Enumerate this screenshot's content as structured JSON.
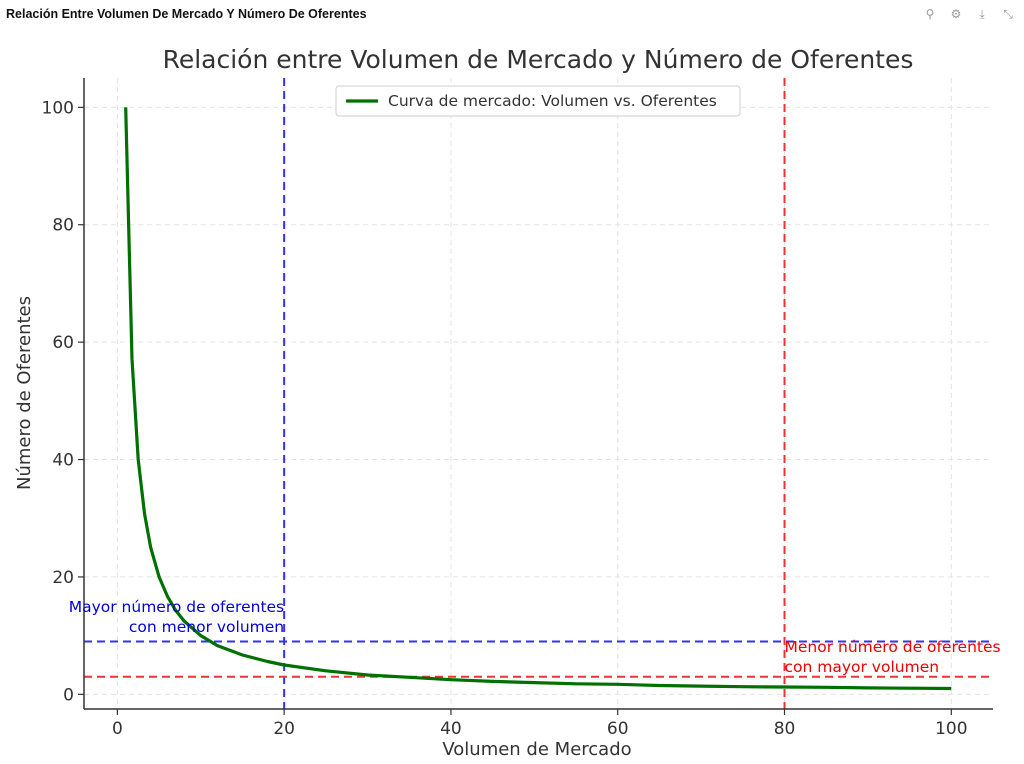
{
  "window": {
    "title": "Relación Entre Volumen De Mercado Y Número De Oferentes",
    "toolbar_icons": [
      "pin-icon",
      "settings-icon",
      "download-icon",
      "collapse-icon"
    ]
  },
  "chart_data": {
    "type": "line",
    "title": "Relación entre Volumen de Mercado y Número de Oferentes",
    "xlabel": "Volumen de Mercado",
    "ylabel": "Número de Oferentes",
    "xlim": [
      -4,
      105
    ],
    "ylim": [
      -2.5,
      105
    ],
    "xticks": [
      0,
      20,
      40,
      60,
      80,
      100
    ],
    "yticks": [
      0,
      20,
      40,
      60,
      80,
      100
    ],
    "grid": true,
    "legend_position": "top-center",
    "series": [
      {
        "name": "Curva de mercado: Volumen vs. Oferentes",
        "color": "#007000",
        "x": [
          1,
          1.75,
          2.5,
          3.25,
          4,
          5,
          6,
          7,
          8,
          10,
          12,
          15,
          18,
          20,
          25,
          30,
          35,
          40,
          45,
          50,
          55,
          60,
          65,
          70,
          75,
          80,
          85,
          90,
          95,
          100
        ],
        "y": [
          100,
          57.1,
          40.0,
          30.8,
          25.0,
          20.0,
          16.7,
          14.3,
          12.5,
          10.0,
          8.3,
          6.7,
          5.6,
          5.0,
          4.0,
          3.3,
          2.9,
          2.5,
          2.2,
          2.0,
          1.8,
          1.7,
          1.5,
          1.4,
          1.3,
          1.25,
          1.2,
          1.1,
          1.05,
          1.0
        ]
      }
    ],
    "reference_lines": [
      {
        "orientation": "vertical",
        "value": 20,
        "color": "#3333ee"
      },
      {
        "orientation": "horizontal",
        "value": 9,
        "color": "#3333ee"
      },
      {
        "orientation": "vertical",
        "value": 80,
        "color": "#ee3333"
      },
      {
        "orientation": "horizontal",
        "value": 3,
        "color": "#ee3333"
      }
    ],
    "annotations": [
      {
        "lines": [
          "Mayor número de oferentes",
          "con menor volumen"
        ],
        "color": "#0000dd",
        "align": "right",
        "anchor_x": 20,
        "anchor_y": 14
      },
      {
        "lines": [
          "Menor número de oferentes",
          "con mayor volumen"
        ],
        "color": "#ee0000",
        "align": "left",
        "anchor_x": 80,
        "anchor_y": 7.2
      }
    ]
  }
}
